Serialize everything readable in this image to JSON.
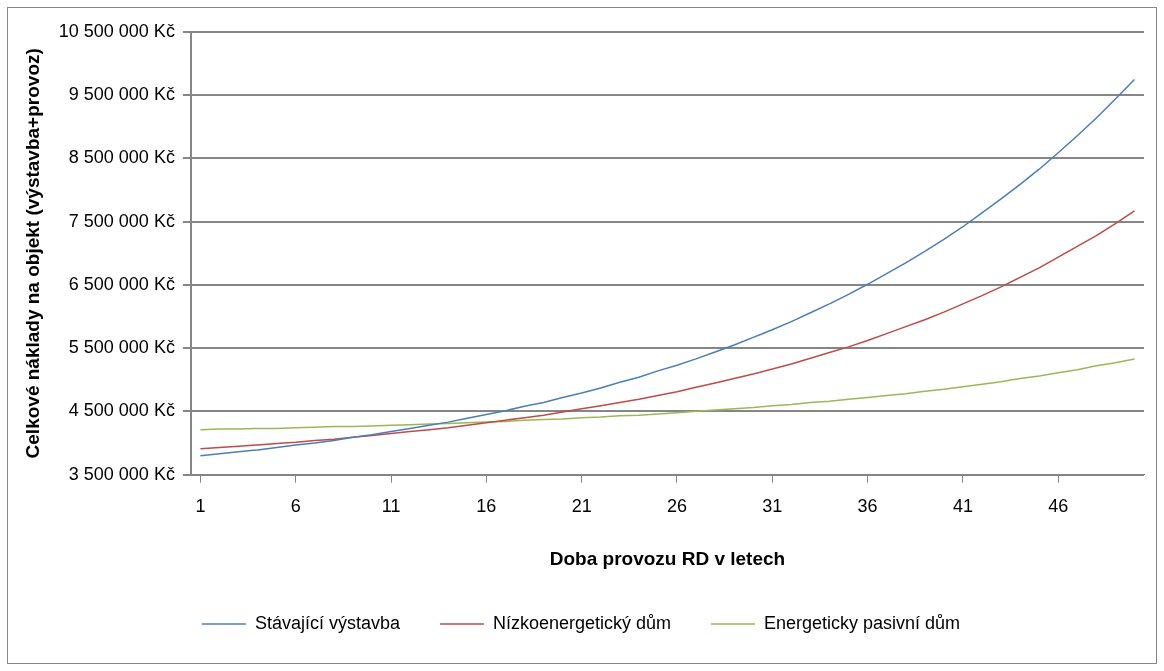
{
  "chart_data": {
    "type": "line",
    "xlabel": "Doba provozu RD v letech",
    "ylabel": "Celkové náklady na objekt (výstavba+provoz)",
    "x": [
      1,
      2,
      3,
      4,
      5,
      6,
      7,
      8,
      9,
      10,
      11,
      12,
      13,
      14,
      15,
      16,
      17,
      18,
      19,
      20,
      21,
      22,
      23,
      24,
      25,
      26,
      27,
      28,
      29,
      30,
      31,
      32,
      33,
      34,
      35,
      36,
      37,
      38,
      39,
      40,
      41,
      42,
      43,
      44,
      45,
      46,
      47,
      48,
      49,
      50
    ],
    "xlim": [
      0.5,
      50.5
    ],
    "xticks": [
      1,
      6,
      11,
      16,
      21,
      26,
      31,
      36,
      41,
      46
    ],
    "ylim": [
      3500000,
      10500000
    ],
    "yticks": [
      {
        "value": 3500000,
        "label": "3 500 000 Kč"
      },
      {
        "value": 4500000,
        "label": "4 500 000 Kč"
      },
      {
        "value": 5500000,
        "label": "5 500 000 Kč"
      },
      {
        "value": 6500000,
        "label": "6 500 000 Kč"
      },
      {
        "value": 7500000,
        "label": "7 500 000 Kč"
      },
      {
        "value": 8500000,
        "label": "8 500 000 Kč"
      },
      {
        "value": 9500000,
        "label": "9 500 000 Kč"
      },
      {
        "value": 10500000,
        "label": "10 500 000 Kč"
      }
    ],
    "grid": "y",
    "legend": "bottom",
    "marker": "none",
    "line_style": "solid",
    "series": [
      {
        "name": "Stávající výstavba",
        "color": "#4a7ebb",
        "values": [
          3800000,
          3830000,
          3860000,
          3890000,
          3930000,
          3970000,
          4000000,
          4040000,
          4090000,
          4130000,
          4180000,
          4230000,
          4280000,
          4330000,
          4390000,
          4450000,
          4510000,
          4580000,
          4640000,
          4720000,
          4790000,
          4870000,
          4960000,
          5040000,
          5140000,
          5230000,
          5330000,
          5440000,
          5550000,
          5670000,
          5790000,
          5920000,
          6060000,
          6200000,
          6350000,
          6510000,
          6680000,
          6850000,
          7030000,
          7220000,
          7420000,
          7640000,
          7860000,
          8090000,
          8330000,
          8590000,
          8860000,
          9140000,
          9440000,
          9750000
        ]
      },
      {
        "name": "Nízkoenergetický dům",
        "color": "#be4b48",
        "values": [
          3910000,
          3930000,
          3950000,
          3970000,
          3990000,
          4010000,
          4040000,
          4060000,
          4090000,
          4120000,
          4150000,
          4180000,
          4210000,
          4240000,
          4280000,
          4320000,
          4360000,
          4400000,
          4440000,
          4490000,
          4540000,
          4590000,
          4640000,
          4690000,
          4750000,
          4810000,
          4880000,
          4950000,
          5020000,
          5090000,
          5170000,
          5250000,
          5340000,
          5430000,
          5520000,
          5620000,
          5730000,
          5840000,
          5950000,
          6070000,
          6200000,
          6330000,
          6470000,
          6620000,
          6770000,
          6940000,
          7110000,
          7280000,
          7470000,
          7670000
        ]
      },
      {
        "name": "Energeticky pasivní dům",
        "color": "#98b954",
        "values": [
          4210000,
          4220000,
          4220000,
          4230000,
          4230000,
          4240000,
          4250000,
          4260000,
          4260000,
          4270000,
          4280000,
          4290000,
          4300000,
          4310000,
          4320000,
          4330000,
          4340000,
          4360000,
          4370000,
          4380000,
          4400000,
          4410000,
          4430000,
          4440000,
          4460000,
          4480000,
          4500000,
          4520000,
          4540000,
          4560000,
          4590000,
          4610000,
          4640000,
          4660000,
          4690000,
          4720000,
          4750000,
          4780000,
          4820000,
          4850000,
          4890000,
          4930000,
          4970000,
          5020000,
          5060000,
          5110000,
          5160000,
          5220000,
          5270000,
          5330000
        ]
      }
    ]
  }
}
